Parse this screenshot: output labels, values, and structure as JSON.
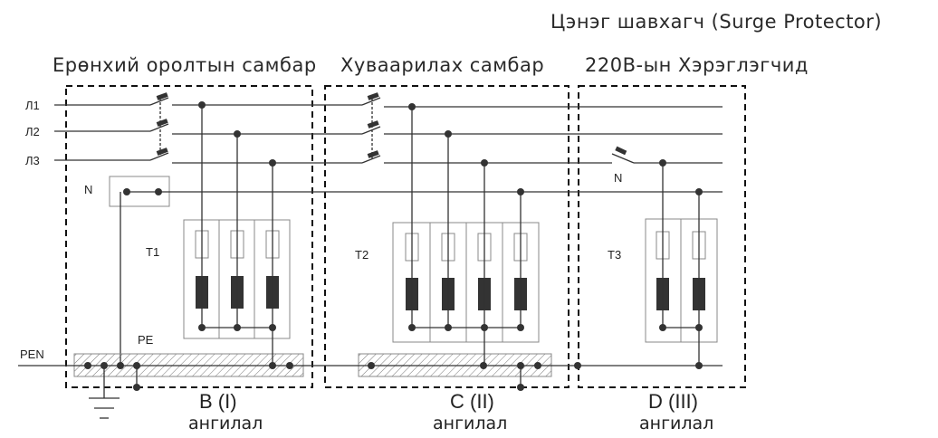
{
  "header": {
    "surge_protector": "Цэнэг шавхагч (Surge Protector)",
    "zone1": "Ерөнхий оролтын самбар",
    "zone2": "Хуваарилах самбар",
    "zone3": "220В-ын Хэрэглэгчид"
  },
  "lines": {
    "l1": "Л1",
    "l2": "Л2",
    "l3": "Л3",
    "n": "N",
    "n_right": "N",
    "pen": "PEN",
    "pe": "PE"
  },
  "protectors": {
    "t1": "T1",
    "t2": "T2",
    "t3": "T3"
  },
  "classes": [
    {
      "code": "B (I)",
      "label": "ангилал"
    },
    {
      "code": "C (II)",
      "label": "ангилал"
    },
    {
      "code": "D (III)",
      "label": "ангилал"
    }
  ]
}
